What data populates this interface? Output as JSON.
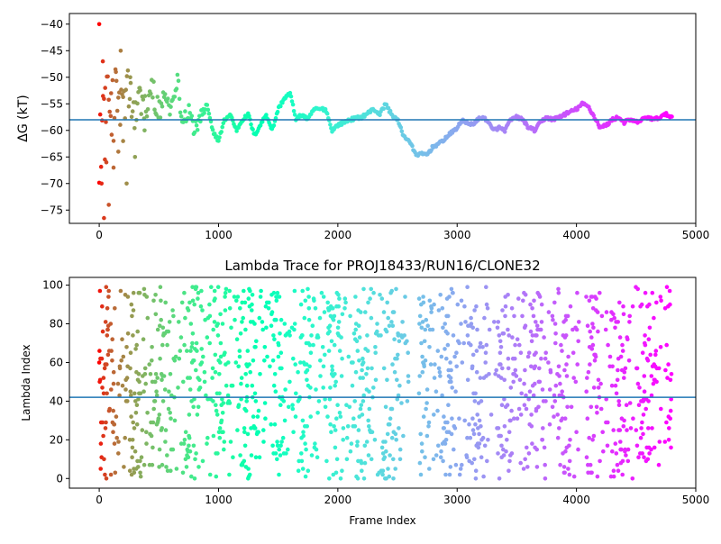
{
  "chart_data": [
    {
      "type": "scatter",
      "title": "",
      "xlabel": "",
      "ylabel": "ΔG (kT)",
      "xlim": [
        -250,
        5000
      ],
      "ylim": [
        -77.5,
        -38
      ],
      "xticks": [
        0,
        1000,
        2000,
        3000,
        4000,
        5000
      ],
      "yticks": [
        -75,
        -70,
        -65,
        -60,
        -55,
        -50,
        -45,
        -40
      ],
      "hline": -58.0,
      "hline_color": "#1f77b4",
      "colormap": "rainbow_r",
      "n_frames": 4800,
      "grid": false,
      "legend": "none",
      "anchors": [
        [
          0,
          -60
        ],
        [
          100,
          -56
        ],
        [
          150,
          -54
        ],
        [
          200,
          -56
        ],
        [
          250,
          -52
        ],
        [
          300,
          -58
        ],
        [
          350,
          -54
        ],
        [
          400,
          -56
        ],
        [
          450,
          -52
        ],
        [
          500,
          -57
        ],
        [
          550,
          -53
        ],
        [
          600,
          -56
        ],
        [
          650,
          -50
        ],
        [
          700,
          -58
        ],
        [
          750,
          -56
        ],
        [
          800,
          -60
        ],
        [
          850,
          -58
        ],
        [
          900,
          -55
        ],
        [
          950,
          -60
        ],
        [
          1000,
          -62
        ],
        [
          1050,
          -58
        ],
        [
          1100,
          -57
        ],
        [
          1150,
          -60
        ],
        [
          1200,
          -58
        ],
        [
          1250,
          -57
        ],
        [
          1300,
          -61
        ],
        [
          1350,
          -59
        ],
        [
          1400,
          -57
        ],
        [
          1450,
          -60
        ],
        [
          1500,
          -56
        ],
        [
          1550,
          -54
        ],
        [
          1600,
          -53
        ],
        [
          1650,
          -58
        ],
        [
          1700,
          -57
        ],
        [
          1750,
          -58
        ],
        [
          1800,
          -56
        ],
        [
          1900,
          -56
        ],
        [
          1950,
          -60
        ],
        [
          2000,
          -59
        ],
        [
          2100,
          -58
        ],
        [
          2200,
          -57.5
        ],
        [
          2300,
          -56
        ],
        [
          2350,
          -57
        ],
        [
          2400,
          -55
        ],
        [
          2450,
          -57
        ],
        [
          2500,
          -58
        ],
        [
          2550,
          -61
        ],
        [
          2600,
          -62
        ],
        [
          2650,
          -64.5
        ],
        [
          2700,
          -64.5
        ],
        [
          2750,
          -64.5
        ],
        [
          2800,
          -63
        ],
        [
          2850,
          -62.5
        ],
        [
          2900,
          -61.5
        ],
        [
          3000,
          -59.5
        ],
        [
          3050,
          -58
        ],
        [
          3100,
          -59
        ],
        [
          3150,
          -58.5
        ],
        [
          3200,
          -57.5
        ],
        [
          3250,
          -58
        ],
        [
          3300,
          -60
        ],
        [
          3350,
          -59.5
        ],
        [
          3400,
          -60
        ],
        [
          3450,
          -58
        ],
        [
          3500,
          -57.5
        ],
        [
          3550,
          -58
        ],
        [
          3600,
          -59.5
        ],
        [
          3650,
          -60
        ],
        [
          3700,
          -58.5
        ],
        [
          3750,
          -57.5
        ],
        [
          3800,
          -58
        ],
        [
          3900,
          -57
        ],
        [
          4000,
          -56
        ],
        [
          4050,
          -55
        ],
        [
          4100,
          -55.5
        ],
        [
          4150,
          -57.5
        ],
        [
          4200,
          -59.5
        ],
        [
          4250,
          -59
        ],
        [
          4300,
          -58
        ],
        [
          4350,
          -57.5
        ],
        [
          4400,
          -58.5
        ],
        [
          4450,
          -58
        ],
        [
          4500,
          -58.5
        ],
        [
          4550,
          -58
        ],
        [
          4600,
          -57.5
        ],
        [
          4650,
          -58
        ],
        [
          4700,
          -57.5
        ],
        [
          4750,
          -57
        ],
        [
          4800,
          -57.5
        ]
      ],
      "early_spread": [
        [
          0,
          -40
        ],
        [
          20,
          -70
        ],
        [
          30,
          -47
        ],
        [
          40,
          -76.5
        ],
        [
          50,
          -52
        ],
        [
          60,
          -66
        ],
        [
          80,
          -74
        ],
        [
          100,
          -53
        ],
        [
          120,
          -67
        ],
        [
          140,
          -49
        ],
        [
          160,
          -64
        ],
        [
          180,
          -45
        ],
        [
          200,
          -62
        ],
        [
          230,
          -70
        ],
        [
          260,
          -50
        ],
        [
          300,
          -65
        ],
        [
          340,
          -52
        ],
        [
          380,
          -60
        ]
      ]
    },
    {
      "type": "scatter",
      "title": "Lambda Trace for PROJ18433/RUN16/CLONE32",
      "xlabel": "Frame Index",
      "ylabel": "Lambda Index",
      "xlim": [
        -250,
        5000
      ],
      "ylim": [
        -5,
        104
      ],
      "xticks": [
        0,
        1000,
        2000,
        3000,
        4000,
        5000
      ],
      "yticks": [
        0,
        20,
        40,
        60,
        80,
        100
      ],
      "hline": 42,
      "hline_color": "#1f77b4",
      "colormap": "rainbow_r",
      "n_frames": 4800,
      "lambda_max": 99,
      "grid": false,
      "legend": "none"
    }
  ]
}
